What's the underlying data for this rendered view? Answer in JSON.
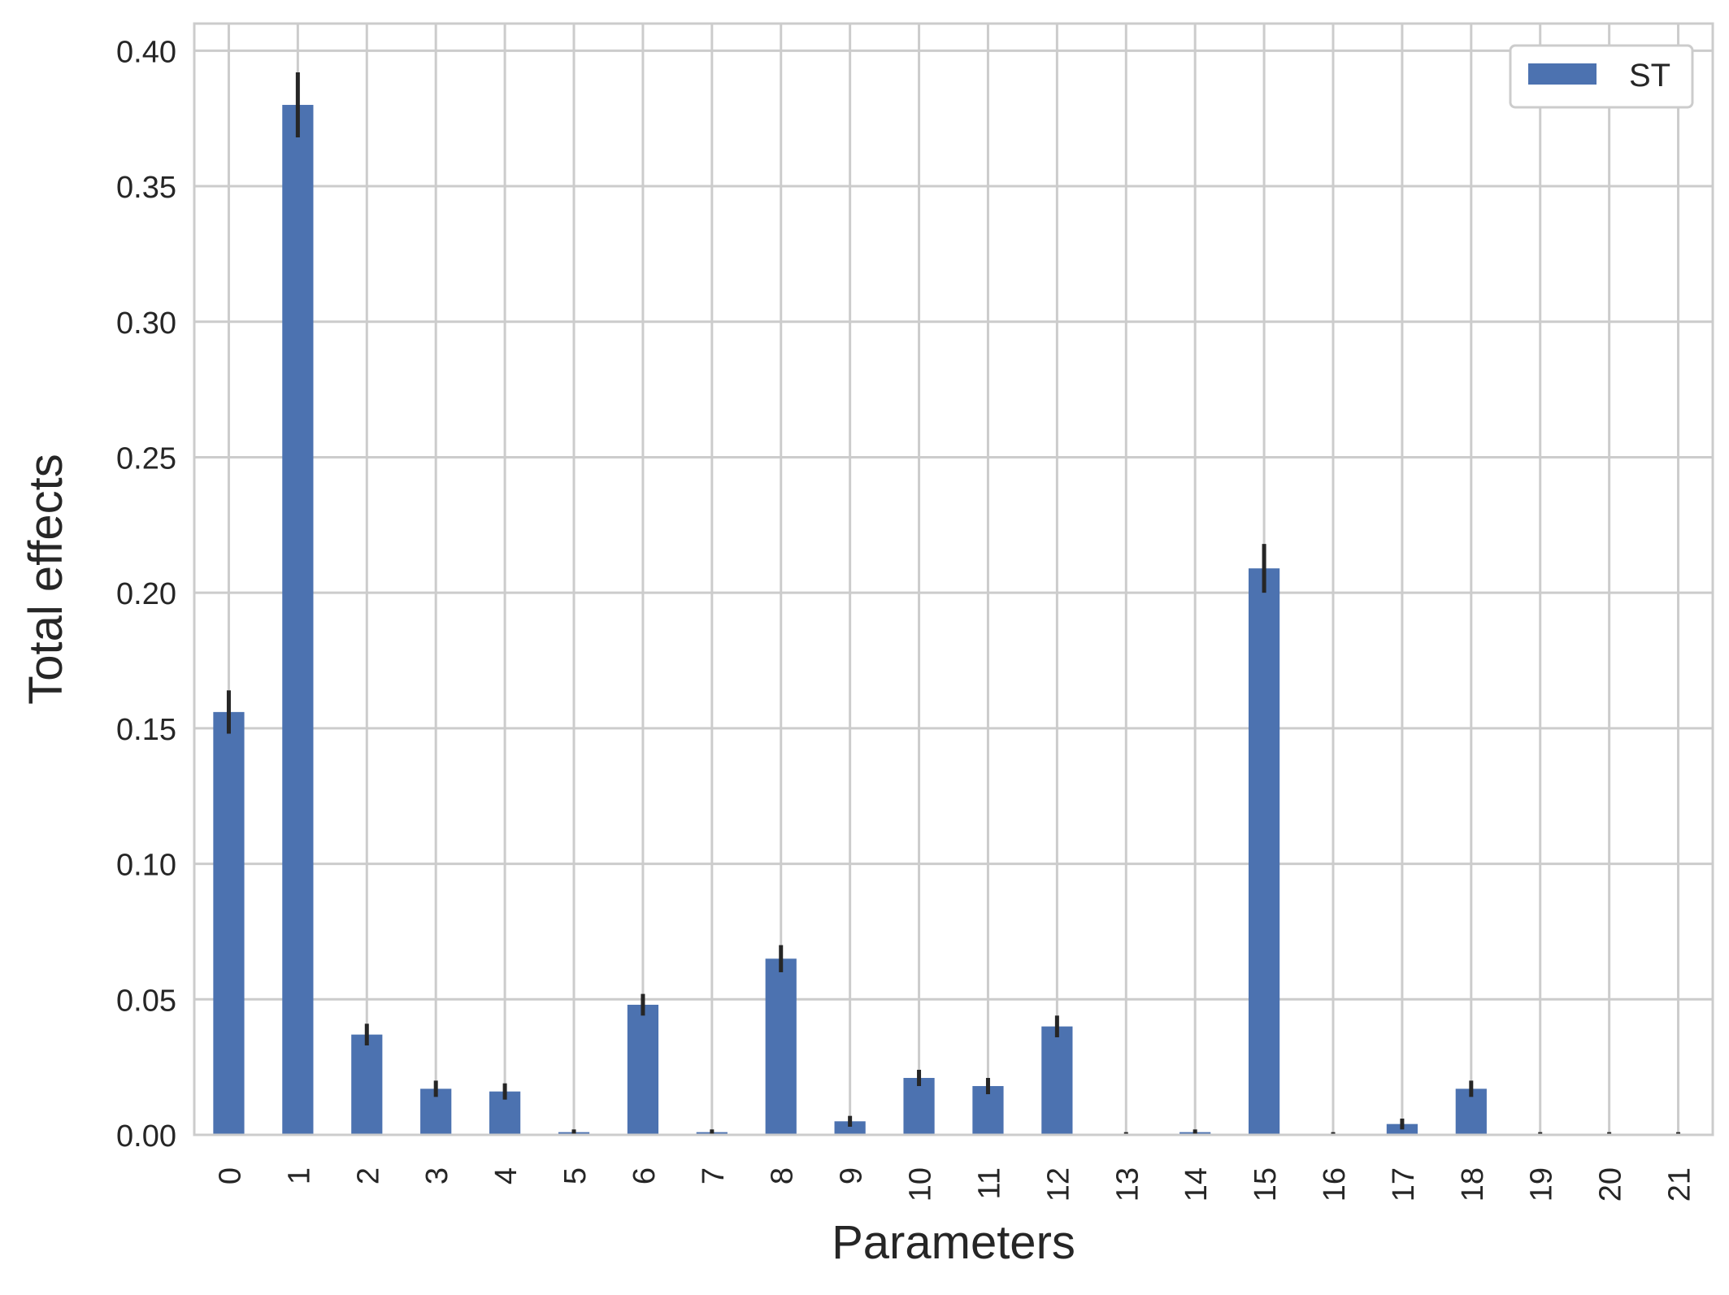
{
  "chart_data": {
    "type": "bar",
    "title": "",
    "xlabel": "Parameters",
    "ylabel": "Total effects",
    "categories": [
      "0",
      "1",
      "2",
      "3",
      "4",
      "5",
      "6",
      "7",
      "8",
      "9",
      "10",
      "11",
      "12",
      "13",
      "14",
      "15",
      "16",
      "17",
      "18",
      "19",
      "20",
      "21"
    ],
    "series": [
      {
        "name": "ST",
        "color": "#4c72b0",
        "values": [
          0.156,
          0.38,
          0.037,
          0.017,
          0.016,
          0.001,
          0.048,
          0.001,
          0.065,
          0.005,
          0.021,
          0.018,
          0.04,
          0.0,
          0.001,
          0.209,
          0.0,
          0.004,
          0.017,
          0.0,
          0.0,
          0.0
        ],
        "errors": [
          0.008,
          0.012,
          0.004,
          0.003,
          0.003,
          0.001,
          0.004,
          0.001,
          0.005,
          0.002,
          0.003,
          0.003,
          0.004,
          0.001,
          0.001,
          0.009,
          0.001,
          0.002,
          0.003,
          0.001,
          0.001,
          0.001
        ]
      }
    ],
    "ylim": [
      0,
      0.41
    ],
    "yticks": [
      "0.00",
      "0.05",
      "0.10",
      "0.15",
      "0.20",
      "0.25",
      "0.30",
      "0.35",
      "0.40"
    ],
    "grid": true,
    "legend_position": "top-right"
  }
}
